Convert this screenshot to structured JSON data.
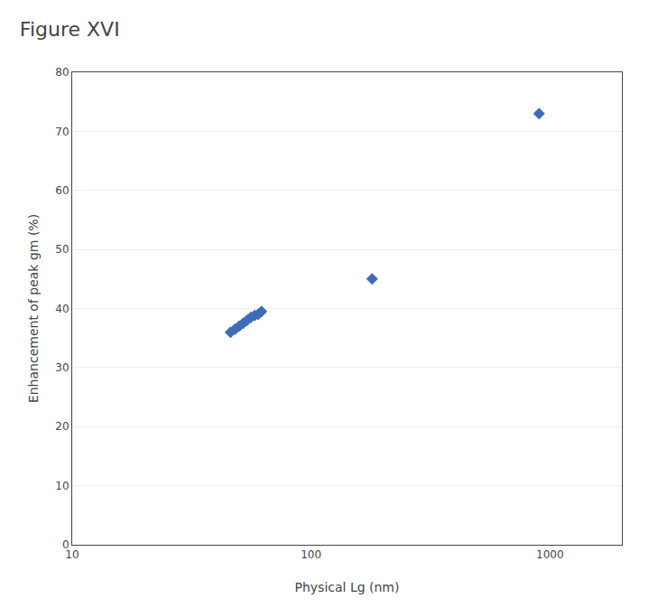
{
  "chart_data": {
    "type": "scatter",
    "title": "Figure XVI",
    "x_label": "Physical Lg (nm)",
    "y_label": "Enhancement of peak gm (%)",
    "x": [
      46,
      48,
      50,
      52,
      54,
      56,
      58,
      60,
      62,
      180,
      900
    ],
    "values": [
      36.0,
      36.5,
      37.0,
      37.5,
      38.0,
      38.5,
      38.8,
      39.0,
      39.5,
      45.0,
      73.0
    ],
    "color": "#3d6db5",
    "marker": "diamond",
    "log": "x",
    "xlim": [
      10,
      2000
    ],
    "xticks": [
      10,
      100,
      1000
    ],
    "ylim": [
      0,
      80
    ],
    "yticks": [
      0,
      10,
      20,
      30,
      40,
      50,
      60,
      70,
      80
    ],
    "grid": "y"
  }
}
